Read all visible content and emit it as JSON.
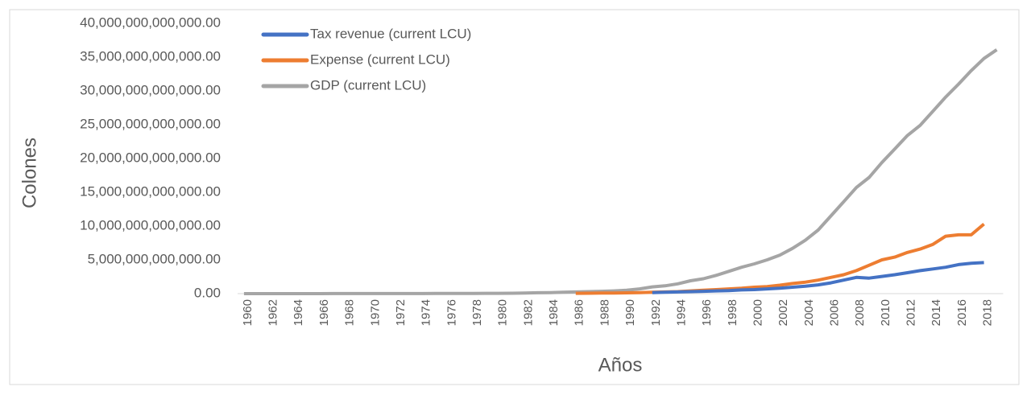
{
  "chart_data": {
    "type": "line",
    "x_label": "Años",
    "y_label": "Colones",
    "categories": [
      "1960",
      null,
      "1962",
      null,
      "1964",
      null,
      "1966",
      null,
      "1968",
      null,
      "1970",
      null,
      "1972",
      null,
      "1974",
      null,
      "1976",
      null,
      "1978",
      null,
      "1980",
      null,
      "1982",
      null,
      "1984",
      null,
      "1986",
      null,
      "1988",
      null,
      "1990",
      null,
      "1992",
      null,
      "1994",
      null,
      "1996",
      null,
      "1998",
      null,
      "2000",
      null,
      "2002",
      null,
      "2004",
      null,
      "2006",
      null,
      "2008",
      null,
      "2010",
      null,
      "2012",
      null,
      "2014",
      null,
      "2016",
      null,
      "2018",
      null
    ],
    "series": [
      {
        "name": "Tax revenue (current LCU)",
        "color": "#4472c4",
        "values": [
          null,
          null,
          null,
          null,
          null,
          null,
          null,
          null,
          null,
          null,
          null,
          null,
          null,
          null,
          null,
          null,
          null,
          null,
          null,
          null,
          null,
          null,
          null,
          null,
          null,
          null,
          null,
          null,
          null,
          null,
          null,
          null,
          150000000000.0,
          200000000000.0,
          250000000000.0,
          300000000000.0,
          350000000000.0,
          400000000000.0,
          450000000000.0,
          550000000000.0,
          600000000000.0,
          700000000000.0,
          800000000000.0,
          950000000000.0,
          1100000000000.0,
          1300000000000.0,
          1600000000000.0,
          2000000000000.0,
          2400000000000.0,
          2300000000000.0,
          2550000000000.0,
          2800000000000.0,
          3100000000000.0,
          3400000000000.0,
          3650000000000.0,
          3900000000000.0,
          4300000000000.0,
          4500000000000.0,
          4600000000000.0,
          null
        ]
      },
      {
        "name": "Expense (current LCU)",
        "color": "#ed7d31",
        "values": [
          null,
          null,
          null,
          null,
          null,
          null,
          null,
          null,
          null,
          null,
          null,
          null,
          null,
          null,
          null,
          null,
          null,
          null,
          null,
          null,
          null,
          null,
          null,
          null,
          null,
          null,
          50000000000.0,
          60000000000.0,
          80000000000.0,
          100000000000.0,
          120000000000.0,
          150000000000.0,
          200000000000.0,
          250000000000.0,
          300000000000.0,
          400000000000.0,
          500000000000.0,
          600000000000.0,
          700000000000.0,
          800000000000.0,
          950000000000.0,
          1050000000000.0,
          1250000000000.0,
          1500000000000.0,
          1700000000000.0,
          2000000000000.0,
          2400000000000.0,
          2800000000000.0,
          3400000000000.0,
          4200000000000.0,
          5000000000000.0,
          5400000000000.0,
          6100000000000.0,
          6600000000000.0,
          7300000000000.0,
          8500000000000.0,
          8700000000000.0,
          8700000000000.0,
          10300000000000.0,
          null
        ]
      },
      {
        "name": "GDP (current LCU)",
        "color": "#a5a5a5",
        "values": [
          3000000000.0,
          3000000000.0,
          4000000000.0,
          4000000000.0,
          4000000000.0,
          5000000000.0,
          5000000000.0,
          6000000000.0,
          7000000000.0,
          7000000000.0,
          8000000000.0,
          9000000000.0,
          11000000000.0,
          13000000000.0,
          17000000000.0,
          22000000000.0,
          26000000000.0,
          33000000000.0,
          38000000000.0,
          43000000000.0,
          49000000000.0,
          57000000000.0,
          97000000000.0,
          130000000000.0,
          160000000000.0,
          200000000000.0,
          250000000000.0,
          300000000000.0,
          350000000000.0,
          400000000000.0,
          500000000000.0,
          700000000000.0,
          1000000000000.0,
          1150000000000.0,
          1450000000000.0,
          1900000000000.0,
          2200000000000.0,
          2700000000000.0,
          3300000000000.0,
          3900000000000.0,
          4400000000000.0,
          5000000000000.0,
          5700000000000.0,
          6700000000000.0,
          7900000000000.0,
          9400000000000.0,
          11500000000000.0,
          13600000000000.0,
          15700000000000.0,
          17200000000000.0,
          19400000000000.0,
          21400000000000.0,
          23400000000000.0,
          24900000000000.0,
          27000000000000.0,
          29100000000000.0,
          31000000000000.0,
          33000000000000.0,
          34800000000000.0,
          36100000000000.0
        ]
      }
    ],
    "ylim": [
      0,
      40000000000000.0
    ],
    "yticks": [
      {
        "value": 0,
        "label": "0.00"
      },
      {
        "value": 5000000000000.0,
        "label": "5,000,000,000,000.00"
      },
      {
        "value": 10000000000000.0,
        "label": "10,000,000,000,000.00"
      },
      {
        "value": 15000000000000.0,
        "label": "15,000,000,000,000.00"
      },
      {
        "value": 20000000000000.0,
        "label": "20,000,000,000,000.00"
      },
      {
        "value": 25000000000000.0,
        "label": "25,000,000,000,000.00"
      },
      {
        "value": 30000000000000.0,
        "label": "30,000,000,000,000.00"
      },
      {
        "value": 35000000000000.0,
        "label": "35,000,000,000,000.00"
      },
      {
        "value": 40000000000000.0,
        "label": "40,000,000,000,000.00"
      }
    ],
    "grid": false,
    "legend": "upper left"
  }
}
